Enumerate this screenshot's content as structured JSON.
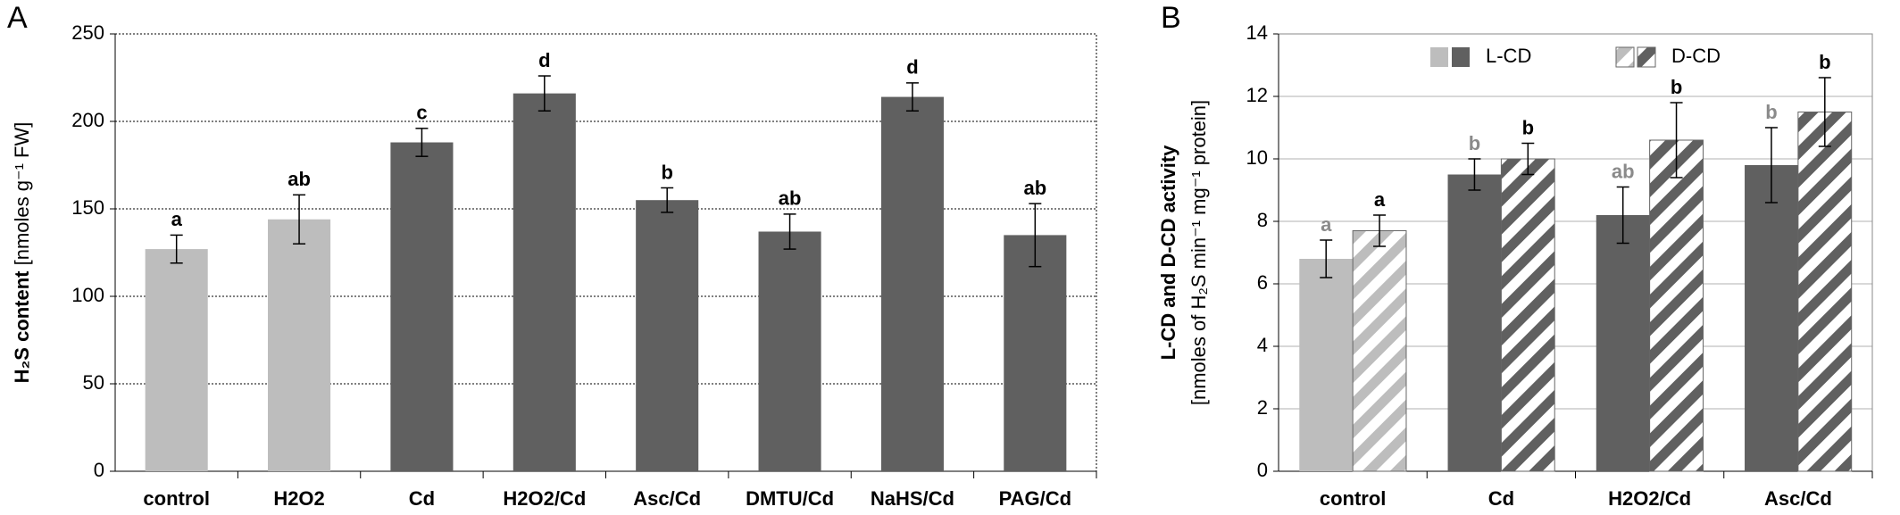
{
  "chart_data": [
    {
      "type": "bar",
      "panel": "A",
      "ylabel": [
        "H₂S content",
        " [nmoles g⁻¹ FW]"
      ],
      "categories": [
        "control",
        "H2O2",
        "Cd",
        "H2O2/Cd",
        "Asc/Cd",
        "DMTU/Cd",
        "NaHS/Cd",
        "PAG/Cd"
      ],
      "values": [
        127,
        144,
        188,
        216,
        155,
        137,
        214,
        135
      ],
      "errors": [
        8,
        14,
        8,
        10,
        7,
        10,
        8,
        18
      ],
      "letters": [
        "a",
        "ab",
        "c",
        "d",
        "b",
        "ab",
        "d",
        "ab"
      ],
      "colors": [
        "#bdbdbd",
        "#bdbdbd",
        "#606060",
        "#606060",
        "#606060",
        "#606060",
        "#606060",
        "#606060"
      ],
      "ylim": [
        0,
        250
      ],
      "yticks": [
        0,
        50,
        100,
        150,
        200,
        250
      ],
      "grid": "dotted"
    },
    {
      "type": "grouped_bar",
      "panel": "B",
      "ylabel": [
        "L-CD and D-CD activity",
        "[nmoles of H₂S min⁻¹ mg⁻¹ protein]"
      ],
      "categories": [
        "control",
        "Cd",
        "H2O2/Cd",
        "Asc/Cd"
      ],
      "series": [
        {
          "name": "L-CD",
          "hatch": false,
          "letter_color": "#8a8a8a",
          "colors": [
            "#bdbdbd",
            "#606060",
            "#606060",
            "#606060"
          ],
          "values": [
            6.8,
            9.5,
            8.2,
            9.8
          ],
          "errors": [
            0.6,
            0.5,
            0.9,
            1.2
          ],
          "letters": [
            "a",
            "b",
            "ab",
            "b"
          ]
        },
        {
          "name": "D-CD",
          "hatch": true,
          "letter_color": "#000000",
          "colors": [
            "#bdbdbd",
            "#606060",
            "#606060",
            "#606060"
          ],
          "values": [
            7.7,
            10.0,
            10.6,
            11.5
          ],
          "errors": [
            0.5,
            0.5,
            1.2,
            1.1
          ],
          "letters": [
            "a",
            "b",
            "b",
            "b"
          ]
        }
      ],
      "ylim": [
        0,
        14
      ],
      "yticks": [
        0,
        2,
        4,
        6,
        8,
        10,
        12,
        14
      ],
      "grid": "solid",
      "legend": "top"
    }
  ]
}
